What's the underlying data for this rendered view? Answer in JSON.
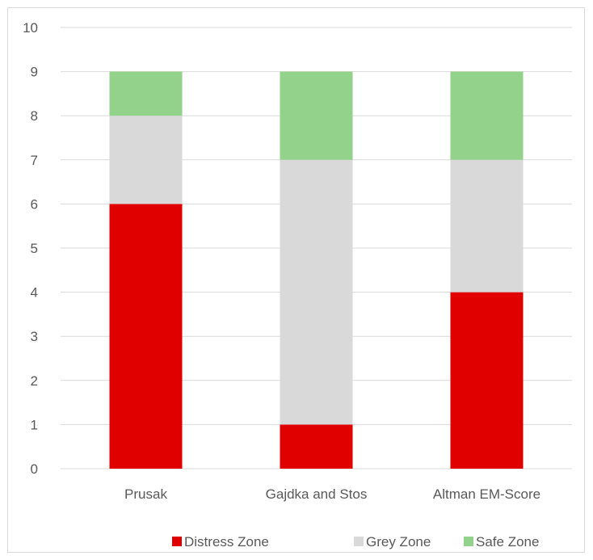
{
  "chart_data": {
    "type": "bar",
    "stacked": true,
    "categories": [
      "Prusak",
      "Gajdka and Stos",
      "Altman EM-Score"
    ],
    "series": [
      {
        "name": "Distress Zone",
        "color": "#e00000",
        "values": [
          6,
          1,
          4
        ]
      },
      {
        "name": "Grey Zone",
        "color": "#d9d9d9",
        "values": [
          2,
          6,
          3
        ]
      },
      {
        "name": "Safe Zone",
        "color": "#92d28a",
        "values": [
          1,
          2,
          2
        ]
      }
    ],
    "title": "",
    "xlabel": "",
    "ylabel": "",
    "ylim": [
      0,
      10
    ],
    "yticks": [
      0,
      1,
      2,
      3,
      4,
      5,
      6,
      7,
      8,
      9,
      10
    ],
    "grid": true,
    "legend_position": "bottom"
  }
}
